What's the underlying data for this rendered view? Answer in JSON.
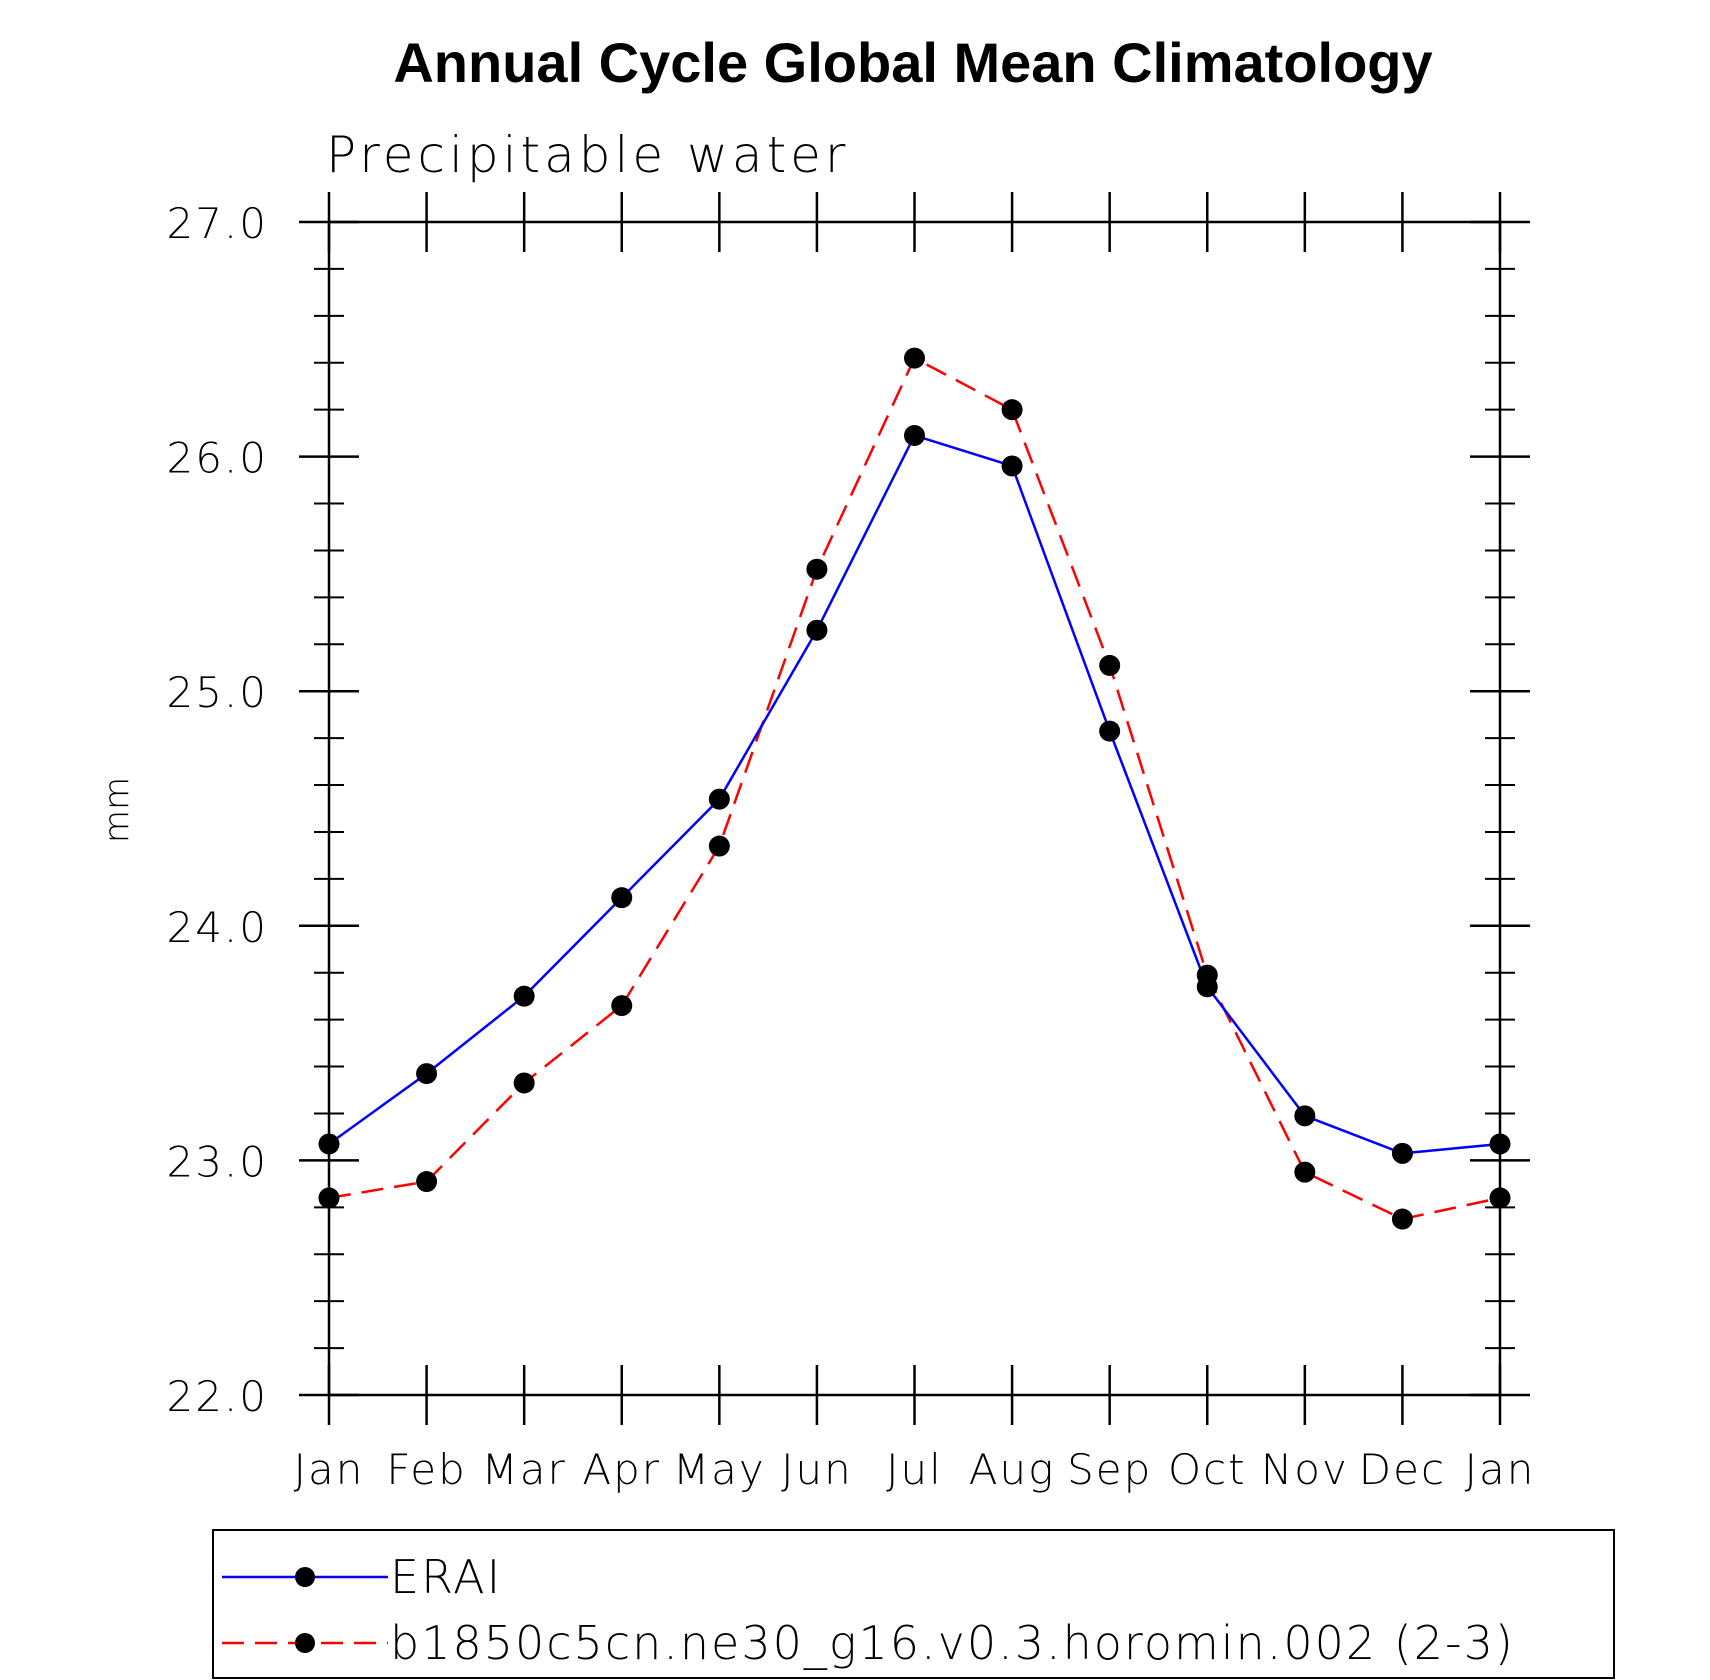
{
  "chart_data": {
    "type": "line",
    "title": "Annual Cycle Global Mean Climatology",
    "subtitle": "Precipitable water",
    "xlabel": "",
    "ylabel": "mm",
    "categories": [
      "Jan",
      "Feb",
      "Mar",
      "Apr",
      "May",
      "Jun",
      "Jul",
      "Aug",
      "Sep",
      "Oct",
      "Nov",
      "Dec",
      "Jan"
    ],
    "ylim": [
      22.0,
      27.0
    ],
    "yticks": [
      "22.0",
      "23.0",
      "24.0",
      "25.0",
      "26.0",
      "27.0"
    ],
    "y_minor_step": 0.2,
    "grid": false,
    "legend_position": "bottom",
    "series": [
      {
        "name": "ERAI",
        "color": "#0000ff",
        "line_style": "solid",
        "marker": "filled-circle",
        "values": [
          23.07,
          23.37,
          23.7,
          24.12,
          24.54,
          25.26,
          26.09,
          25.96,
          24.83,
          23.74,
          23.19,
          23.03,
          23.07
        ]
      },
      {
        "name": "b1850c5cn.ne30_g16.v0.3.horomin.002 (2-3)",
        "color": "#ff0000",
        "line_style": "dashed",
        "marker": "filled-circle",
        "values": [
          22.84,
          22.91,
          23.33,
          23.66,
          24.34,
          25.52,
          26.42,
          26.2,
          25.11,
          23.79,
          22.95,
          22.75,
          22.84
        ]
      }
    ]
  }
}
